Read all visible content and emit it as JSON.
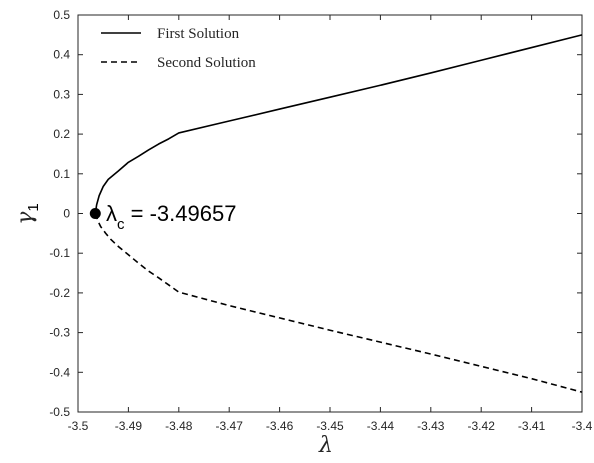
{
  "chart_data": {
    "type": "line",
    "xlabel": "λ",
    "ylabel_main": "γ",
    "ylabel_sub": "1",
    "xlim": [
      -3.5,
      -3.4
    ],
    "ylim": [
      -0.5,
      0.5
    ],
    "xticks": [
      -3.5,
      -3.49,
      -3.48,
      -3.47,
      -3.46,
      -3.45,
      -3.44,
      -3.43,
      -3.42,
      -3.41,
      -3.4
    ],
    "xtick_labels": [
      "-3.5",
      "-3.49",
      "-3.48",
      "-3.47",
      "-3.46",
      "-3.45",
      "-3.44",
      "-3.43",
      "-3.42",
      "-3.41",
      "-3.4"
    ],
    "yticks": [
      0.5,
      0.4,
      0.3,
      0.2,
      0.1,
      0,
      -0.1,
      -0.2,
      -0.3,
      -0.4,
      -0.5
    ],
    "ytick_labels": [
      "0.5",
      "0.4",
      "0.3",
      "0.2",
      "0.1",
      "0",
      "-0.1",
      "-0.2",
      "-0.3",
      "-0.4",
      "-0.5"
    ],
    "grid": false,
    "legend_position": "top-left",
    "series": [
      {
        "name": "First Solution",
        "style": "solid",
        "color": "#000000",
        "x": [
          -3.49657,
          -3.4963,
          -3.4958,
          -3.495,
          -3.494,
          -3.492,
          -3.49,
          -3.488,
          -3.486,
          -3.484,
          -3.482,
          -3.48,
          -3.47,
          -3.46,
          -3.45,
          -3.44,
          -3.43,
          -3.42,
          -3.41,
          -3.4
        ],
        "y": [
          0.0,
          0.022,
          0.045,
          0.068,
          0.086,
          0.107,
          0.129,
          0.144,
          0.16,
          0.175,
          0.188,
          0.203,
          0.233,
          0.263,
          0.293,
          0.323,
          0.354,
          0.386,
          0.418,
          0.45
        ]
      },
      {
        "name": "Second Solution",
        "style": "dashed",
        "color": "#000000",
        "x": [
          -3.49657,
          -3.496,
          -3.4955,
          -3.4945,
          -3.4935,
          -3.492,
          -3.49,
          -3.488,
          -3.486,
          -3.484,
          -3.482,
          -3.48,
          -3.47,
          -3.46,
          -3.45,
          -3.44,
          -3.43,
          -3.42,
          -3.41,
          -3.4
        ],
        "y": [
          0.0,
          -0.02,
          -0.033,
          -0.05,
          -0.065,
          -0.083,
          -0.104,
          -0.125,
          -0.145,
          -0.162,
          -0.18,
          -0.198,
          -0.232,
          -0.263,
          -0.294,
          -0.324,
          -0.354,
          -0.385,
          -0.416,
          -0.45
        ]
      }
    ],
    "critical_point": {
      "x": -3.49657,
      "y": 0.0
    },
    "annotation": {
      "main": "λ",
      "sub": "c",
      "value": " = -3.49657"
    }
  }
}
